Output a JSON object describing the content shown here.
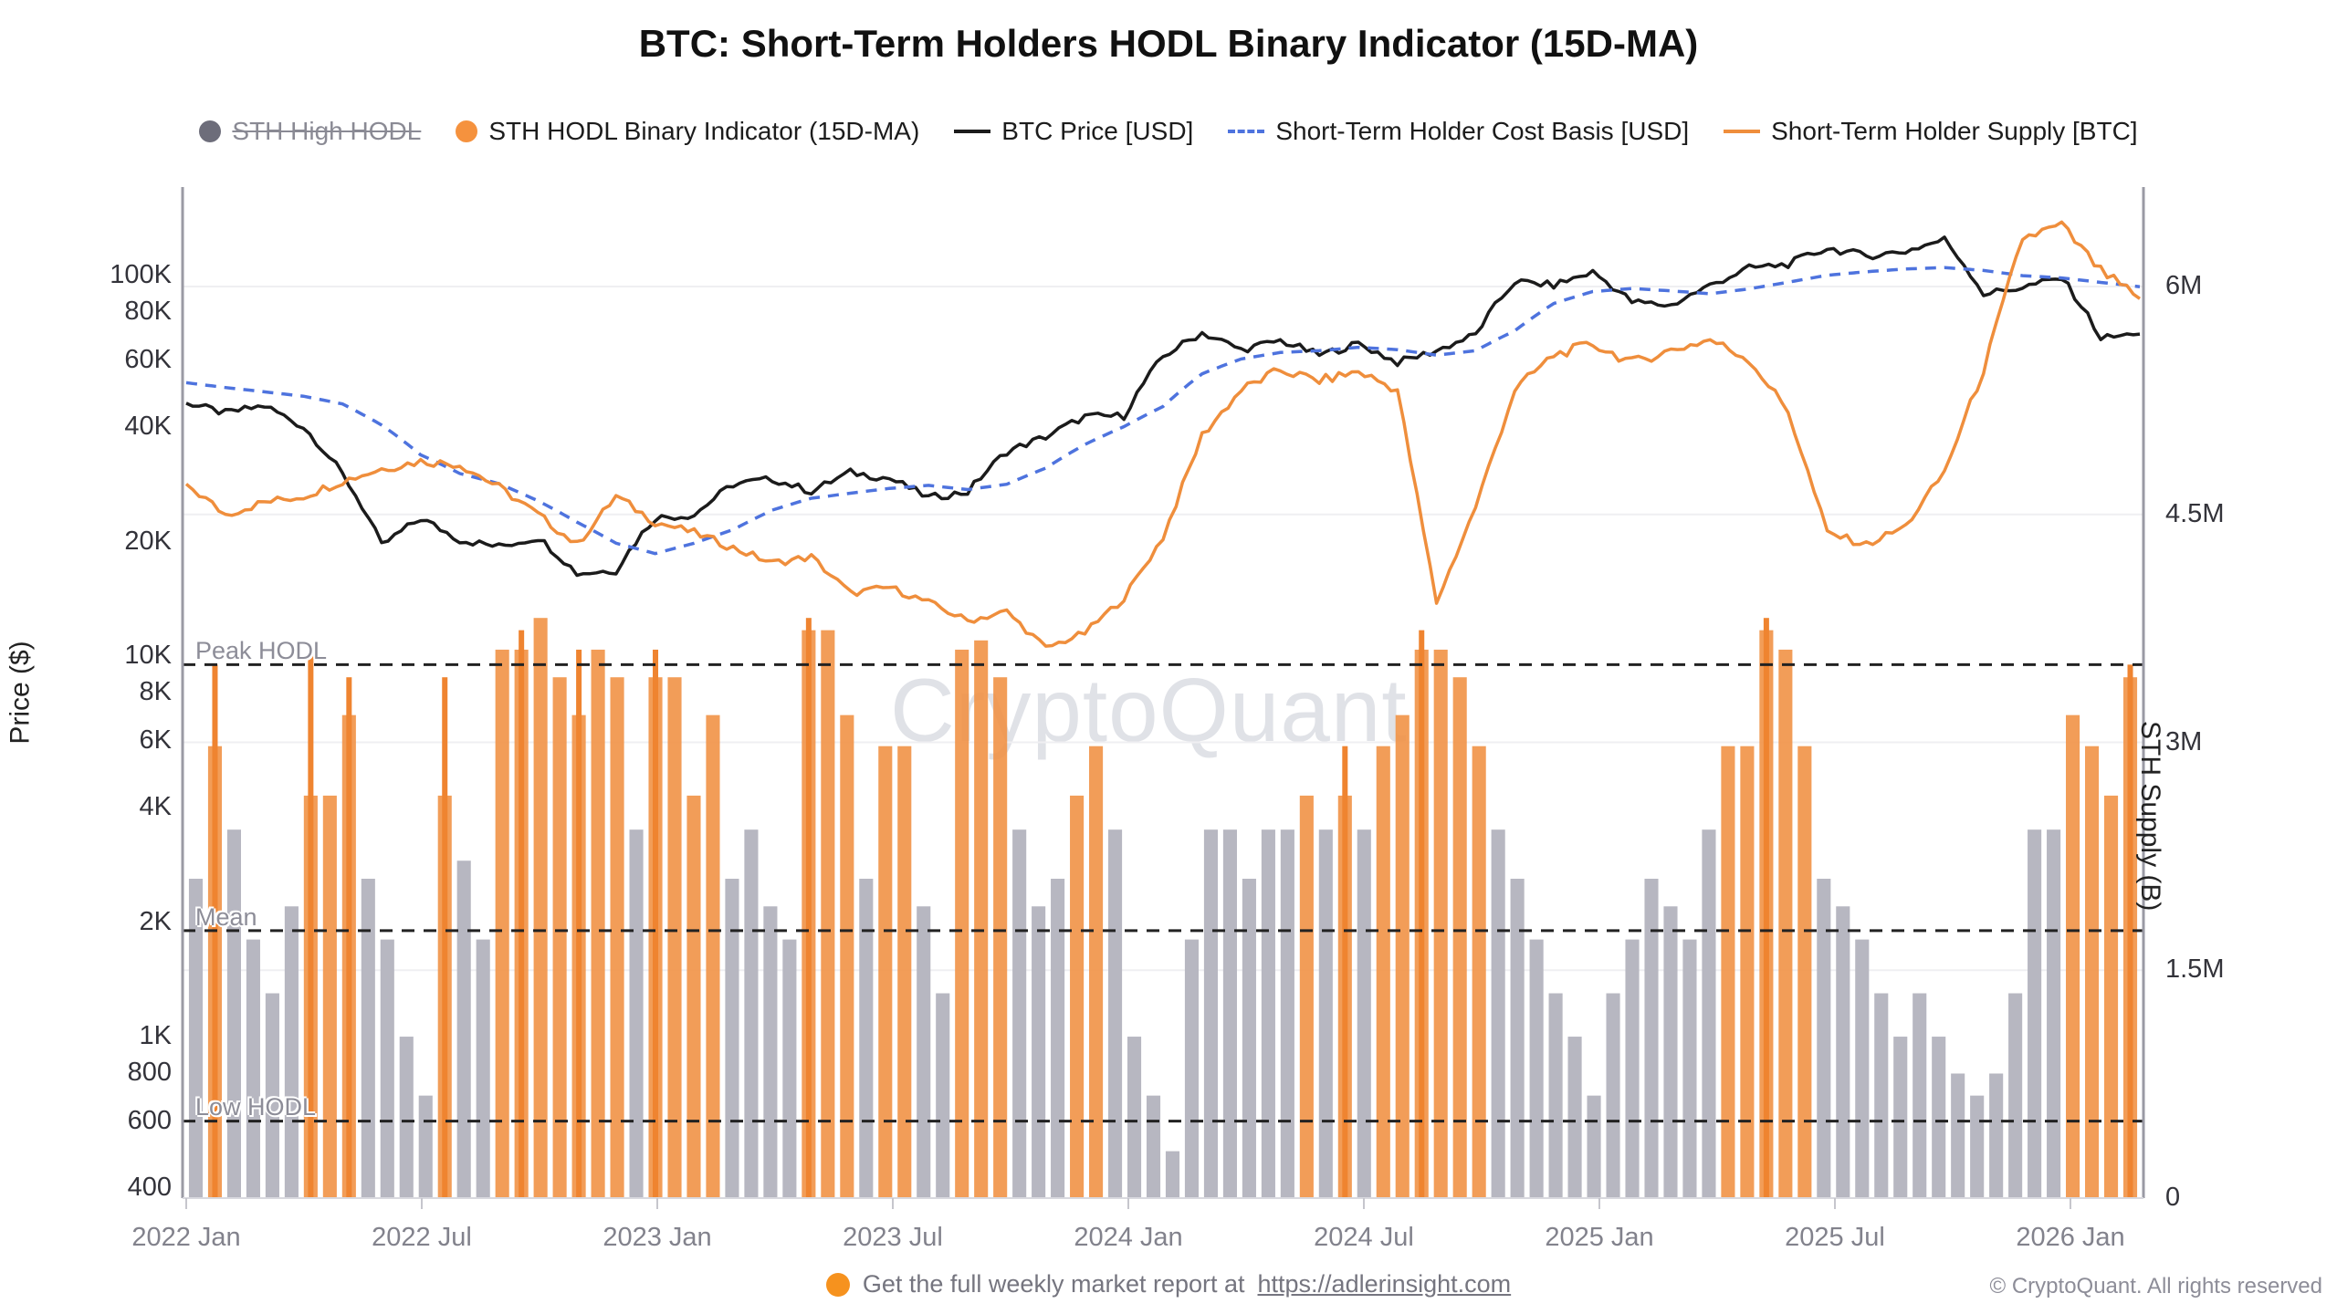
{
  "title": "BTC: Short-Term Holders HODL Binary Indicator (15D-MA)",
  "legend": {
    "items": [
      {
        "label": "STH High HODL",
        "marker": "gray-dot",
        "color": "#6d6d7a",
        "disabled": true
      },
      {
        "label": "STH HODL Binary Indicator (15D-MA)",
        "marker": "orange-dot",
        "color": "#f5923e",
        "disabled": false
      },
      {
        "label": "BTC Price [USD]",
        "marker": "black-line",
        "color": "#1b1b1b",
        "disabled": false
      },
      {
        "label": "Short-Term Holder Cost Basis [USD]",
        "marker": "blue-dashed-line",
        "color": "#4e73de",
        "disabled": false
      },
      {
        "label": "Short-Term Holder Supply [BTC]",
        "marker": "orange-line",
        "color": "#ef8e3c",
        "disabled": false
      }
    ]
  },
  "left_axis": {
    "title": "Price ($)",
    "scale": "log",
    "tick_labels": [
      "100K",
      "80K",
      "60K",
      "40K",
      "20K",
      "10K",
      "8K",
      "6K",
      "4K",
      "2K",
      "1K",
      "800",
      "600",
      "400"
    ],
    "tick_values": [
      100000,
      80000,
      60000,
      40000,
      20000,
      10000,
      8000,
      6000,
      4000,
      2000,
      1000,
      800,
      600,
      400
    ]
  },
  "right_axis": {
    "title": "STH Supply (B)",
    "scale": "linear",
    "tick_labels": [
      "6M",
      "4.5M",
      "3M",
      "1.5M",
      "0"
    ],
    "tick_values": [
      6,
      4.5,
      3,
      1.5,
      0
    ]
  },
  "x_axis": {
    "tick_labels": [
      "2022 Jan",
      "2022 Jul",
      "2023 Jan",
      "2023 Jul",
      "2024 Jan",
      "2024 Jul",
      "2025 Jan",
      "2025 Jul",
      "2026 Jan"
    ]
  },
  "annotations": [
    {
      "label": "Peak HODL",
      "value": 9500
    },
    {
      "label": "Mean",
      "value": 1900
    },
    {
      "label": "Low HODL",
      "value": 600
    }
  ],
  "watermark": "CryptoQuant",
  "footer": {
    "report_text": "Get the full weekly market report at",
    "report_link": "https://adlerinsight.com",
    "copyright": "© CryptoQuant. All rights reserved"
  },
  "colors": {
    "btc_price": "#1b1b1b",
    "cost_basis": "#4e73de",
    "sth_supply": "#ef8e3c",
    "bar_gray": "#b7b7c1",
    "bar_orange": "#f19246",
    "bar_orange_spike": "#ef8430",
    "dashed_rule": "#222222",
    "gridline": "#efeff2",
    "axis_line": "#9a9aa4"
  },
  "chart_data": {
    "type": "mixed",
    "title": "BTC: Short-Term Holders HODL Binary Indicator (15D-MA)",
    "x_monthly": [
      "2022-01",
      "2022-02",
      "2022-03",
      "2022-04",
      "2022-05",
      "2022-06",
      "2022-07",
      "2022-08",
      "2022-09",
      "2022-10",
      "2022-11",
      "2022-12",
      "2023-01",
      "2023-02",
      "2023-03",
      "2023-04",
      "2023-05",
      "2023-06",
      "2023-07",
      "2023-08",
      "2023-09",
      "2023-10",
      "2023-11",
      "2023-12",
      "2024-01",
      "2024-02",
      "2024-03",
      "2024-04",
      "2024-05",
      "2024-06",
      "2024-07",
      "2024-08",
      "2024-09",
      "2024-10",
      "2024-11",
      "2024-12",
      "2025-01",
      "2025-02",
      "2025-03",
      "2025-04",
      "2025-05",
      "2025-06",
      "2025-07",
      "2025-08",
      "2025-09",
      "2025-10",
      "2025-11",
      "2025-12",
      "2026-01",
      "2026-02",
      "2026-03"
    ],
    "series": [
      {
        "name": "BTC Price [USD]",
        "type": "line",
        "axis": "left-log",
        "unit": "thousand USD",
        "values": [
          46.2,
          43.5,
          45.5,
          40.0,
          30.0,
          19.5,
          23.0,
          20.2,
          19.4,
          20.5,
          16.5,
          16.8,
          23.1,
          23.5,
          28.3,
          29.2,
          27.1,
          30.4,
          29.3,
          26.1,
          27.0,
          34.5,
          37.7,
          42.6,
          42.8,
          61.2,
          70.8,
          63.8,
          67.5,
          61.8,
          66.2,
          59.1,
          63.5,
          69.9,
          96.4,
          94.4,
          102.1,
          85.3,
          83.5,
          94.2,
          104.6,
          107.2,
          118.1,
          112.7,
          115.8,
          124.5,
          89.5,
          93.2,
          98.5,
          68.5,
          70.2
        ]
      },
      {
        "name": "Short-Term Holder Cost Basis [USD]",
        "type": "line-dashed",
        "axis": "left-log",
        "unit": "thousand USD",
        "values": [
          52.3,
          50.8,
          49.5,
          48.2,
          46.0,
          40.5,
          33.8,
          30.2,
          28.4,
          25.6,
          22.5,
          19.8,
          18.6,
          19.8,
          21.5,
          24.2,
          26.0,
          26.8,
          27.6,
          28.1,
          27.4,
          28.3,
          31.2,
          36.0,
          40.1,
          45.3,
          55.2,
          60.4,
          62.8,
          63.5,
          64.8,
          63.9,
          61.8,
          63.5,
          71.6,
          84.5,
          90.8,
          92.5,
          91.2,
          89.6,
          92.3,
          96.1,
          100.2,
          102.4,
          104.1,
          105.0,
          103.2,
          100.0,
          98.6,
          96.0,
          93.5
        ]
      },
      {
        "name": "Short-Term Holder Supply [BTC]",
        "type": "line",
        "axis": "right-linear",
        "unit": "million BTC",
        "values": [
          4.7,
          4.5,
          4.58,
          4.62,
          4.72,
          4.8,
          4.85,
          4.83,
          4.68,
          4.5,
          4.3,
          4.62,
          4.45,
          4.38,
          4.28,
          4.18,
          4.22,
          3.98,
          4.02,
          3.92,
          3.8,
          3.86,
          3.62,
          3.72,
          3.95,
          4.35,
          5.02,
          5.32,
          5.45,
          5.38,
          5.44,
          5.32,
          3.92,
          4.55,
          5.32,
          5.55,
          5.62,
          5.5,
          5.58,
          5.65,
          5.52,
          5.18,
          4.38,
          4.3,
          4.42,
          4.78,
          5.45,
          6.32,
          6.4,
          6.1,
          5.92
        ]
      }
    ],
    "bars": {
      "name": "STH High HODL / STH HODL Binary Indicator (15D-MA)",
      "axis": "left-log",
      "resolution": "biweekly from 2022-01 to 2026-03",
      "unit": "USD",
      "values": [
        2600,
        5800,
        3500,
        1800,
        1300,
        2200,
        4300,
        4300,
        7000,
        2600,
        1800,
        1000,
        700,
        4300,
        2900,
        1800,
        10400,
        10400,
        12600,
        8800,
        7000,
        10400,
        8800,
        3500,
        8800,
        8800,
        4300,
        7000,
        2600,
        3500,
        2200,
        1800,
        11700,
        11700,
        7000,
        2600,
        5800,
        5800,
        2200,
        1300,
        10400,
        11000,
        8800,
        3500,
        2200,
        2600,
        4300,
        5800,
        3500,
        1000,
        700,
        500,
        1800,
        3500,
        3500,
        2600,
        3500,
        3500,
        4300,
        3500,
        4300,
        3500,
        5800,
        7000,
        10400,
        10400,
        8800,
        5800,
        3500,
        2600,
        1800,
        1300,
        1000,
        700,
        1300,
        1800,
        2600,
        2200,
        1800,
        3500,
        5800,
        5800,
        11700,
        10400,
        5800,
        2600,
        2200,
        1800,
        1300,
        1000,
        1300,
        1000,
        800,
        700,
        800,
        1300,
        3500,
        3500,
        7000,
        5800,
        4300,
        8800
      ],
      "active_orange": "010000111000010011111110111100001110110011100011000000000010101111110000000000001111100000000000001111",
      "spikes": {
        "1": 9500,
        "6": 10400,
        "8": 8800,
        "13": 8800,
        "17": 11700,
        "20": 10400,
        "24": 10400,
        "32": 12600,
        "60": 5800,
        "64": 11700,
        "82": 12600,
        "101": 9500
      }
    },
    "reference_lines": [
      {
        "label": "Peak HODL",
        "value": 9500,
        "style": "black-dashed"
      },
      {
        "label": "Mean",
        "value": 1900,
        "style": "black-dashed"
      },
      {
        "label": "Low HODL",
        "value": 600,
        "style": "black-dashed"
      }
    ],
    "layout": {
      "left_axis_range_usd": [
        400,
        150000
      ],
      "right_axis_range_mbtc": [
        0,
        6.66
      ],
      "gridlines_at_right_axis": [
        6,
        4.5,
        3,
        1.5
      ],
      "legend_position": "top"
    }
  }
}
